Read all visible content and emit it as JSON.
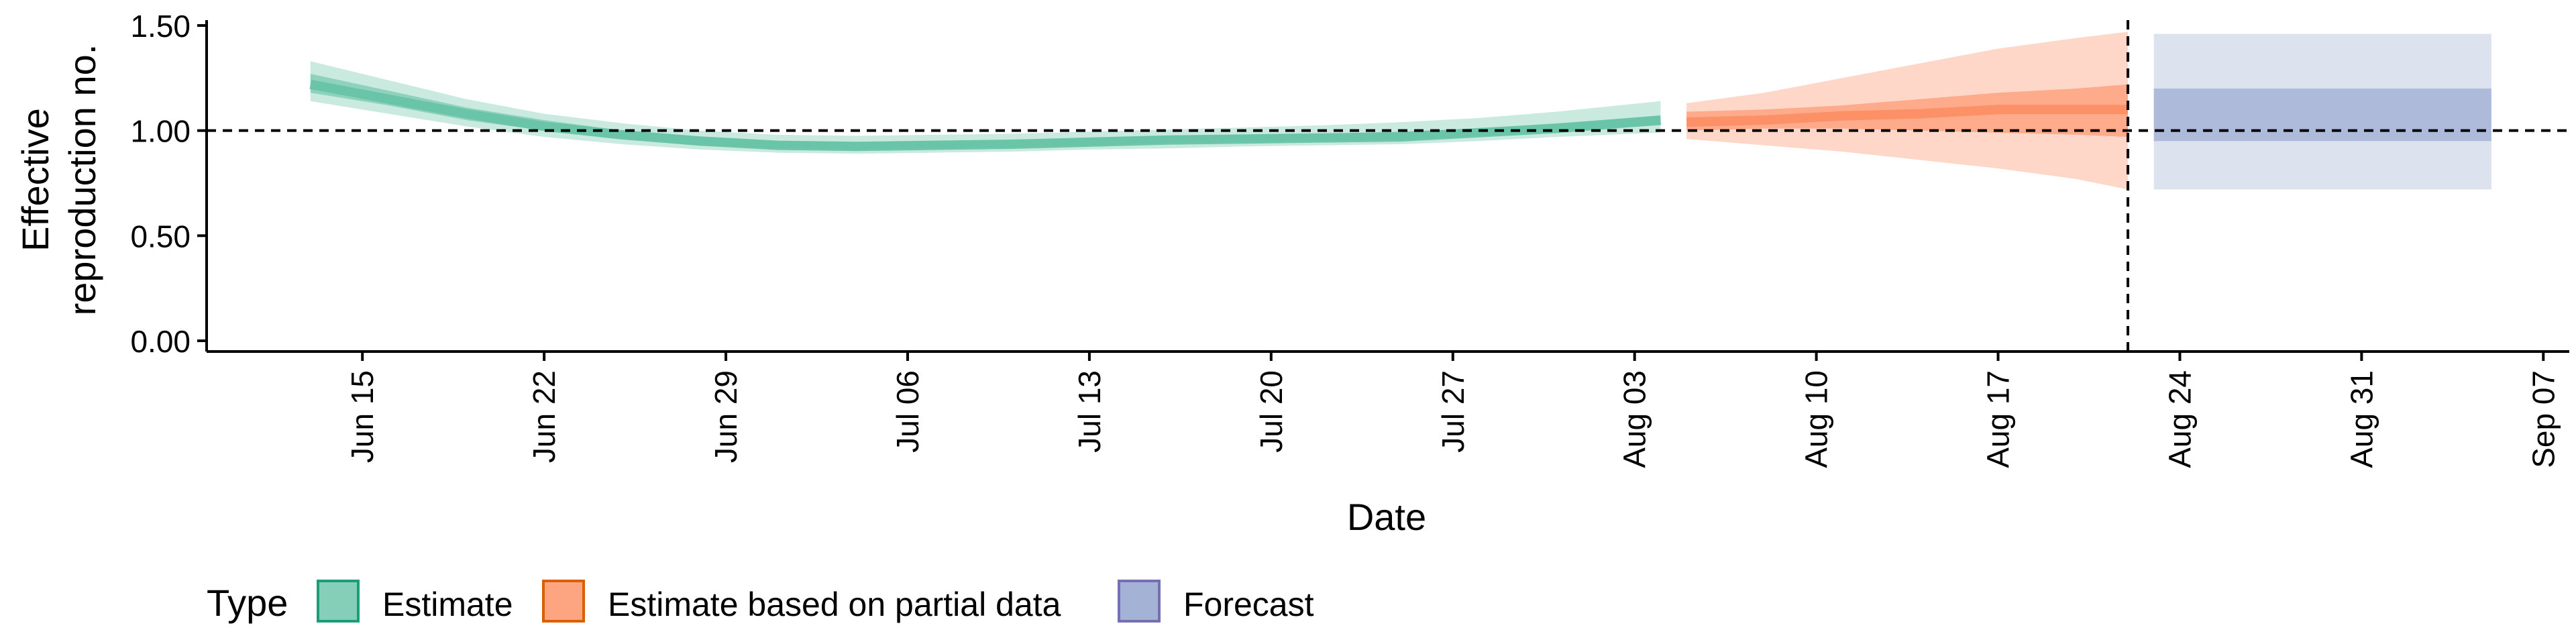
{
  "chart_data": {
    "type": "area",
    "xlabel": "Date",
    "ylabel": "Effective reproduction no.",
    "ylabel_lines": [
      "Effective",
      "reproduction no."
    ],
    "ylim": [
      0,
      1.5
    ],
    "yticks": [
      {
        "value": 0.0,
        "label": "0.00"
      },
      {
        "value": 0.5,
        "label": "0.50"
      },
      {
        "value": 1.0,
        "label": "1.00"
      },
      {
        "value": 1.5,
        "label": "1.50"
      }
    ],
    "xlim": [
      "2020-06-09",
      "2020-09-08"
    ],
    "xticks": [
      {
        "date": "2020-06-15",
        "label": "Jun 15"
      },
      {
        "date": "2020-06-22",
        "label": "Jun 22"
      },
      {
        "date": "2020-06-29",
        "label": "Jun 29"
      },
      {
        "date": "2020-07-06",
        "label": "Jul 06"
      },
      {
        "date": "2020-07-13",
        "label": "Jul 13"
      },
      {
        "date": "2020-07-20",
        "label": "Jul 20"
      },
      {
        "date": "2020-07-27",
        "label": "Jul 27"
      },
      {
        "date": "2020-08-03",
        "label": "Aug 03"
      },
      {
        "date": "2020-08-10",
        "label": "Aug 10"
      },
      {
        "date": "2020-08-17",
        "label": "Aug 17"
      },
      {
        "date": "2020-08-24",
        "label": "Aug 24"
      },
      {
        "date": "2020-08-31",
        "label": "Aug 31"
      },
      {
        "date": "2020-09-07",
        "label": "Sep 07"
      }
    ],
    "reference_line_y": 1.0,
    "vertical_line_date": "2020-08-22",
    "legend": {
      "title": "Type",
      "position": "bottom",
      "items": [
        {
          "label": "Estimate",
          "fill": "#66c2a5",
          "stroke": "#1b9e77"
        },
        {
          "label": "Estimate based on partial data",
          "fill": "#fc8d62",
          "stroke": "#d95f02"
        },
        {
          "label": "Forecast",
          "fill": "#8da0cb",
          "stroke": "#7570b3"
        }
      ]
    },
    "series": [
      {
        "name": "Estimate",
        "color": "#1b9e77",
        "dates": [
          "2020-06-13",
          "2020-06-16",
          "2020-06-19",
          "2020-06-22",
          "2020-06-25",
          "2020-06-28",
          "2020-07-01",
          "2020-07-04",
          "2020-07-07",
          "2020-07-10",
          "2020-07-13",
          "2020-07-16",
          "2020-07-19",
          "2020-07-22",
          "2020-07-25",
          "2020-07-28",
          "2020-07-31",
          "2020-08-04"
        ],
        "median": [
          1.22,
          1.15,
          1.08,
          1.02,
          0.98,
          0.95,
          0.93,
          0.925,
          0.93,
          0.935,
          0.945,
          0.955,
          0.96,
          0.965,
          0.97,
          0.99,
          1.01,
          1.05
        ],
        "lower_50": [
          1.18,
          1.12,
          1.05,
          1.0,
          0.96,
          0.93,
          0.915,
          0.91,
          0.915,
          0.92,
          0.93,
          0.94,
          0.945,
          0.95,
          0.955,
          0.975,
          0.995,
          1.025
        ],
        "upper_50": [
          1.27,
          1.19,
          1.11,
          1.05,
          1.0,
          0.97,
          0.95,
          0.945,
          0.95,
          0.955,
          0.965,
          0.975,
          0.98,
          0.985,
          0.995,
          1.01,
          1.035,
          1.07
        ],
        "lower_90": [
          1.14,
          1.08,
          1.02,
          0.97,
          0.935,
          0.91,
          0.895,
          0.89,
          0.895,
          0.9,
          0.91,
          0.915,
          0.925,
          0.93,
          0.935,
          0.95,
          0.97,
          0.99
        ],
        "upper_90": [
          1.33,
          1.24,
          1.15,
          1.08,
          1.035,
          1.0,
          0.98,
          0.975,
          0.98,
          0.985,
          0.995,
          1.005,
          1.015,
          1.025,
          1.04,
          1.06,
          1.09,
          1.14
        ]
      },
      {
        "name": "Estimate based on partial data",
        "color": "#d95f02",
        "dates": [
          "2020-08-05",
          "2020-08-08",
          "2020-08-11",
          "2020-08-14",
          "2020-08-17",
          "2020-08-20",
          "2020-08-22"
        ],
        "median": [
          1.04,
          1.05,
          1.07,
          1.08,
          1.1,
          1.1,
          1.1
        ],
        "lower_50": [
          1.0,
          1.01,
          1.01,
          1.0,
          0.99,
          0.98,
          0.97
        ],
        "upper_50": [
          1.09,
          1.1,
          1.12,
          1.15,
          1.18,
          1.2,
          1.22
        ],
        "lower_90": [
          0.96,
          0.93,
          0.9,
          0.86,
          0.82,
          0.77,
          0.72
        ],
        "upper_90": [
          1.13,
          1.18,
          1.25,
          1.32,
          1.39,
          1.44,
          1.47
        ]
      },
      {
        "name": "Forecast",
        "color": "#7570b3",
        "dates": [
          "2020-08-23",
          "2020-09-05"
        ],
        "lower_50": [
          0.95,
          0.95
        ],
        "upper_50": [
          1.2,
          1.2
        ],
        "lower_90": [
          0.72,
          0.72
        ],
        "upper_90": [
          1.46,
          1.46
        ]
      }
    ]
  }
}
